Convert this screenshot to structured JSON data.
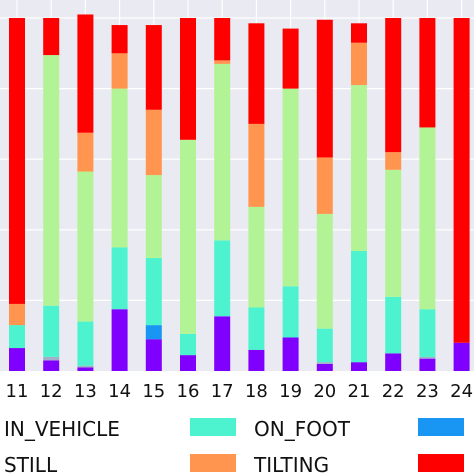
{
  "chart_data": {
    "type": "bar",
    "stacked": true,
    "categories": [
      "11",
      "12",
      "13",
      "14",
      "15",
      "16",
      "17",
      "18",
      "19",
      "20",
      "21",
      "22",
      "23",
      "24"
    ],
    "series": [
      {
        "name": "IN_VEHICLE",
        "color": "#8000ff",
        "values": [
          6.5,
          3.0,
          1.0,
          17.5,
          9.0,
          4.5,
          15.5,
          6.0,
          9.5,
          2.0,
          2.5,
          5.0,
          3.5,
          8.0
        ]
      },
      {
        "name": "",
        "color": "#a0b0c8",
        "values": [
          0.0,
          1.0,
          0.5,
          0.0,
          0.0,
          0.0,
          0.0,
          0.0,
          0.0,
          0.5,
          0.0,
          0.0,
          0.5,
          0.0
        ]
      },
      {
        "name": "",
        "color": "#1996f3",
        "values": [
          0.0,
          0.0,
          0.0,
          0.0,
          4.0,
          0.0,
          0.0,
          0.0,
          0.0,
          0.0,
          0.0,
          0.0,
          0.0,
          0.0
        ]
      },
      {
        "name": "ON_FOOT",
        "color": "#4df3ce",
        "values": [
          6.5,
          14.5,
          12.5,
          17.5,
          19.0,
          6.0,
          21.5,
          12.0,
          14.5,
          9.5,
          31.5,
          16.0,
          13.5,
          0.0
        ]
      },
      {
        "name": "STILL",
        "color": "#b2f396",
        "values": [
          0.0,
          71.0,
          42.5,
          45.0,
          23.5,
          55.0,
          50.0,
          28.5,
          56.0,
          32.5,
          47.0,
          36.0,
          51.5,
          0.0
        ]
      },
      {
        "name": "TILTING",
        "color": "#ff954e",
        "values": [
          6.0,
          0.0,
          11.0,
          10.0,
          18.5,
          0.0,
          1.0,
          23.5,
          0.0,
          16.0,
          12.0,
          5.0,
          0.0,
          0.0
        ]
      },
      {
        "name": "",
        "color": "#ff0000",
        "values": [
          81.0,
          10.5,
          33.5,
          8.0,
          24.0,
          34.5,
          12.0,
          28.5,
          17.0,
          39.0,
          5.5,
          38.0,
          31.0,
          92.0
        ]
      }
    ],
    "ylim": [
      0,
      100
    ],
    "grid": true,
    "legend": {
      "placement": "bottom",
      "entries": [
        {
          "label": "IN_VEHICLE",
          "color": "#8000ff",
          "swatch": false
        },
        {
          "label": "ON_FOOT",
          "color": "#4df3ce",
          "swatch": true
        },
        {
          "label": "",
          "color": "#1996f3",
          "swatch": true
        },
        {
          "label": "STILL",
          "color": "#b2f396",
          "swatch": false
        },
        {
          "label": "TILTING",
          "color": "#ff954e",
          "swatch": true
        },
        {
          "label": "",
          "color": "#ff0000",
          "swatch": true
        }
      ]
    }
  },
  "colors": {
    "plot_background": "#eaeaf2",
    "grid": "#ffffff"
  }
}
